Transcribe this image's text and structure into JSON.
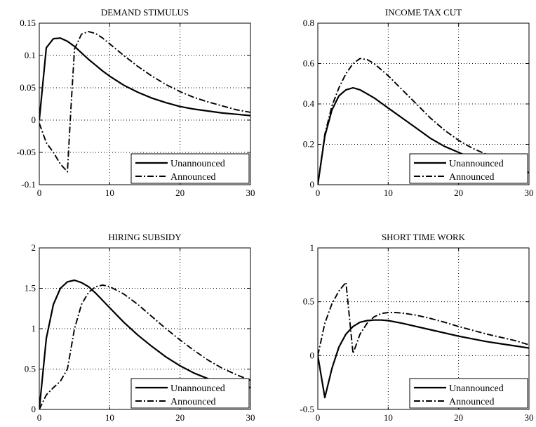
{
  "chart_data": [
    {
      "type": "line",
      "title": "DEMAND STIMULUS",
      "xlim": [
        0,
        30
      ],
      "ylim": [
        -0.1,
        0.15
      ],
      "x_ticks": [
        "0",
        "10",
        "20",
        "30"
      ],
      "y_ticks": [
        "-0.1",
        "-0.05",
        "0",
        "0.05",
        "0.1",
        "0.15"
      ],
      "grid": true,
      "legend_position": "bottom-right",
      "series": [
        {
          "name": "Unannounced",
          "style": "solid",
          "x": [
            0,
            1,
            2,
            3,
            4,
            5,
            6,
            7,
            8,
            9,
            10,
            12,
            14,
            16,
            18,
            20,
            22,
            24,
            26,
            28,
            30
          ],
          "y": [
            0,
            0.112,
            0.126,
            0.127,
            0.122,
            0.114,
            0.104,
            0.094,
            0.085,
            0.076,
            0.068,
            0.054,
            0.043,
            0.034,
            0.027,
            0.021,
            0.017,
            0.014,
            0.011,
            0.009,
            0.007
          ]
        },
        {
          "name": "Announced",
          "style": "dashdot",
          "x": [
            0,
            1,
            2,
            3,
            4,
            4.5,
            5,
            6,
            7,
            8,
            9,
            10,
            12,
            14,
            16,
            18,
            20,
            22,
            24,
            26,
            28,
            30
          ],
          "y": [
            -0.005,
            -0.035,
            -0.05,
            -0.068,
            -0.08,
            0.02,
            0.11,
            0.133,
            0.137,
            0.134,
            0.127,
            0.118,
            0.1,
            0.083,
            0.068,
            0.055,
            0.044,
            0.035,
            0.028,
            0.022,
            0.016,
            0.012
          ]
        }
      ]
    },
    {
      "type": "line",
      "title": "INCOME TAX CUT",
      "xlim": [
        0,
        30
      ],
      "ylim": [
        0,
        0.8
      ],
      "x_ticks": [
        "0",
        "10",
        "20",
        "30"
      ],
      "y_ticks": [
        "0",
        "0.2",
        "0.4",
        "0.6",
        "0.8"
      ],
      "grid": true,
      "legend_position": "bottom-right",
      "series": [
        {
          "name": "Unannounced",
          "style": "solid",
          "x": [
            0,
            1,
            2,
            3,
            4,
            5,
            6,
            7,
            8,
            10,
            12,
            14,
            16,
            18,
            20,
            22,
            24,
            26,
            28,
            30
          ],
          "y": [
            0,
            0.24,
            0.37,
            0.44,
            0.47,
            0.48,
            0.47,
            0.45,
            0.43,
            0.38,
            0.33,
            0.28,
            0.23,
            0.19,
            0.16,
            0.13,
            0.11,
            0.09,
            0.08,
            0.06
          ]
        },
        {
          "name": "Announced",
          "style": "dashdot",
          "x": [
            0,
            1,
            2,
            3,
            4,
            5,
            6,
            7,
            8,
            10,
            12,
            14,
            16,
            18,
            20,
            22,
            24,
            26,
            28,
            30
          ],
          "y": [
            0,
            0.25,
            0.39,
            0.48,
            0.55,
            0.6,
            0.625,
            0.62,
            0.6,
            0.54,
            0.47,
            0.4,
            0.33,
            0.27,
            0.22,
            0.18,
            0.15,
            0.12,
            0.1,
            0.08
          ]
        }
      ]
    },
    {
      "type": "line",
      "title": "HIRING SUBSIDY",
      "xlim": [
        0,
        30
      ],
      "ylim": [
        0,
        2
      ],
      "x_ticks": [
        "0",
        "10",
        "20",
        "30"
      ],
      "y_ticks": [
        "0",
        "0.5",
        "1",
        "1.5",
        "2"
      ],
      "grid": true,
      "legend_position": "bottom-right",
      "series": [
        {
          "name": "Unannounced",
          "style": "solid",
          "x": [
            0,
            1,
            2,
            3,
            4,
            5,
            6,
            7,
            8,
            10,
            12,
            14,
            16,
            18,
            20,
            22,
            24,
            26,
            28,
            30
          ],
          "y": [
            0,
            0.88,
            1.3,
            1.5,
            1.58,
            1.6,
            1.57,
            1.52,
            1.44,
            1.26,
            1.08,
            0.92,
            0.78,
            0.65,
            0.54,
            0.45,
            0.38,
            0.34,
            0.3,
            0.27
          ]
        },
        {
          "name": "Announced",
          "style": "dashdot",
          "x": [
            0,
            1,
            2,
            3,
            4,
            5,
            6,
            7,
            8,
            9,
            10,
            12,
            14,
            16,
            18,
            20,
            22,
            24,
            26,
            28,
            30
          ],
          "y": [
            0,
            0.18,
            0.27,
            0.35,
            0.5,
            1.0,
            1.3,
            1.45,
            1.52,
            1.54,
            1.52,
            1.43,
            1.3,
            1.15,
            1.0,
            0.86,
            0.73,
            0.61,
            0.51,
            0.43,
            0.36
          ]
        }
      ]
    },
    {
      "type": "line",
      "title": "SHORT TIME WORK",
      "xlim": [
        0,
        30
      ],
      "ylim": [
        -0.5,
        1
      ],
      "x_ticks": [
        "0",
        "10",
        "20",
        "30"
      ],
      "y_ticks": [
        "-0.5",
        "0",
        "0.5",
        "1"
      ],
      "grid": true,
      "legend_position": "bottom-right",
      "series": [
        {
          "name": "Unannounced",
          "style": "solid",
          "x": [
            0,
            1,
            2,
            3,
            4,
            5,
            6,
            7,
            8,
            9,
            10,
            12,
            14,
            16,
            18,
            20,
            22,
            24,
            26,
            28,
            30
          ],
          "y": [
            0,
            -0.39,
            -0.12,
            0.08,
            0.2,
            0.27,
            0.31,
            0.325,
            0.33,
            0.33,
            0.325,
            0.3,
            0.27,
            0.24,
            0.21,
            0.18,
            0.155,
            0.13,
            0.11,
            0.09,
            0.07
          ]
        },
        {
          "name": "Announced",
          "style": "dashdot",
          "x": [
            0,
            1,
            2,
            3,
            4,
            5,
            6,
            7,
            8,
            9,
            10,
            11,
            12,
            14,
            16,
            18,
            20,
            22,
            24,
            26,
            28,
            30
          ],
          "y": [
            0,
            0.3,
            0.48,
            0.6,
            0.68,
            0.02,
            0.2,
            0.3,
            0.36,
            0.39,
            0.4,
            0.4,
            0.395,
            0.375,
            0.345,
            0.31,
            0.27,
            0.235,
            0.2,
            0.17,
            0.14,
            0.1
          ]
        }
      ]
    }
  ]
}
